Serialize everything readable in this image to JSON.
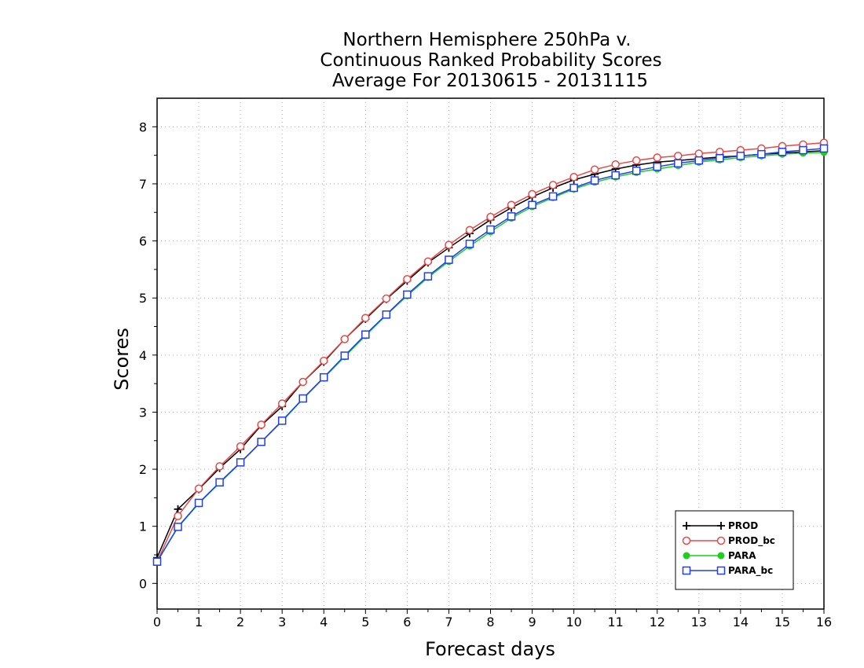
{
  "chart_data": {
    "type": "line",
    "title_lines": [
      "Northern Hemisphere 250hPa v.",
      "Continuous Ranked Probability Scores",
      "Average For 20130615 - 20131115"
    ],
    "xlabel": "Forecast days",
    "ylabel": "Scores",
    "xlim": [
      0,
      16
    ],
    "ylim": [
      -0.45,
      8.5
    ],
    "xticks": [
      "0",
      "1",
      "2",
      "3",
      "4",
      "5",
      "6",
      "7",
      "8",
      "9",
      "10",
      "11",
      "12",
      "13",
      "14",
      "15",
      "16"
    ],
    "yticks": [
      "0",
      "1",
      "2",
      "3",
      "4",
      "5",
      "6",
      "7",
      "8"
    ],
    "grid": true,
    "legend_position": "bottom-right",
    "x": [
      0,
      0.5,
      1,
      1.5,
      2,
      2.5,
      3,
      3.5,
      4,
      4.5,
      5,
      5.5,
      6,
      6.5,
      7,
      7.5,
      8,
      8.5,
      9,
      9.5,
      10,
      10.5,
      11,
      11.5,
      12,
      12.5,
      13,
      13.5,
      14,
      14.5,
      15,
      15.5,
      16
    ],
    "series": [
      {
        "name": "PROD",
        "color": "#000000",
        "marker": "plus",
        "values": [
          0.45,
          1.3,
          1.65,
          2.02,
          2.35,
          2.77,
          3.1,
          3.53,
          3.88,
          4.28,
          4.63,
          4.98,
          5.3,
          5.62,
          5.88,
          6.13,
          6.37,
          6.58,
          6.77,
          6.93,
          7.07,
          7.17,
          7.26,
          7.33,
          7.38,
          7.41,
          7.44,
          7.47,
          7.49,
          7.52,
          7.54,
          7.56,
          7.58
        ]
      },
      {
        "name": "PROD_bc",
        "color": "#e84848",
        "marker": "circle",
        "values": [
          0.38,
          1.18,
          1.66,
          2.05,
          2.4,
          2.78,
          3.15,
          3.53,
          3.9,
          4.28,
          4.65,
          4.99,
          5.33,
          5.64,
          5.93,
          6.19,
          6.42,
          6.63,
          6.82,
          6.98,
          7.12,
          7.25,
          7.34,
          7.41,
          7.46,
          7.49,
          7.53,
          7.56,
          7.59,
          7.62,
          7.66,
          7.69,
          7.72
        ]
      },
      {
        "name": "PARA",
        "color": "#1fcf1f",
        "marker": "dot",
        "values": [
          0.38,
          0.98,
          1.4,
          1.76,
          2.11,
          2.48,
          2.84,
          3.23,
          3.6,
          3.97,
          4.34,
          4.7,
          5.04,
          5.36,
          5.64,
          5.91,
          6.16,
          6.4,
          6.6,
          6.76,
          6.91,
          7.03,
          7.12,
          7.2,
          7.26,
          7.32,
          7.38,
          7.42,
          7.46,
          7.49,
          7.52,
          7.54,
          7.55
        ]
      },
      {
        "name": "PARA_bc",
        "color": "#1f3ff0",
        "marker": "square",
        "values": [
          0.38,
          0.99,
          1.41,
          1.77,
          2.12,
          2.48,
          2.85,
          3.24,
          3.61,
          3.99,
          4.36,
          4.71,
          5.06,
          5.38,
          5.67,
          5.95,
          6.2,
          6.43,
          6.63,
          6.78,
          6.93,
          7.06,
          7.15,
          7.23,
          7.3,
          7.36,
          7.41,
          7.45,
          7.49,
          7.52,
          7.56,
          7.59,
          7.62
        ]
      }
    ]
  }
}
